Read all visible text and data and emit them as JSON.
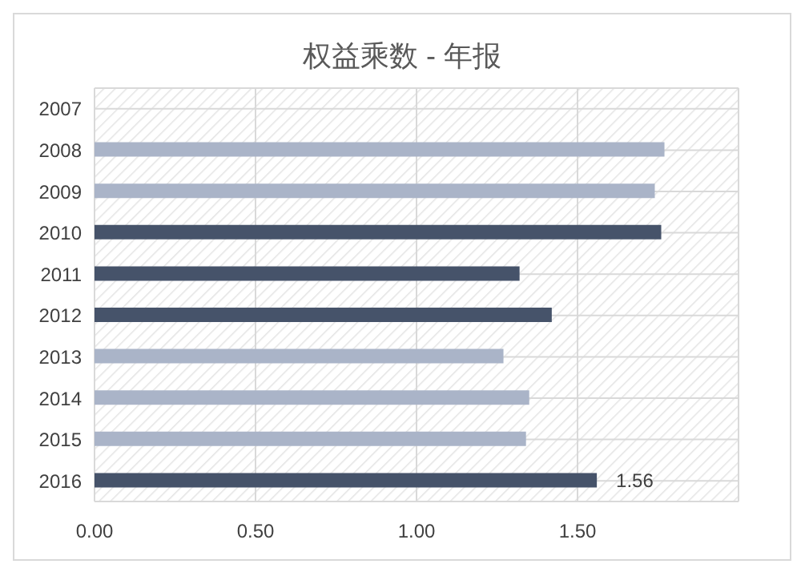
{
  "chart_data": {
    "type": "bar",
    "orientation": "horizontal",
    "title": "权益乘数 - 年报",
    "categories": [
      "2007",
      "2008",
      "2009",
      "2010",
      "2011",
      "2012",
      "2013",
      "2014",
      "2015",
      "2016"
    ],
    "values": [
      null,
      1.77,
      1.74,
      1.76,
      1.32,
      1.42,
      1.27,
      1.35,
      1.34,
      1.56
    ],
    "colors": [
      "#aab4c8",
      "#aab4c8",
      "#aab4c8",
      "#46536a",
      "#46536a",
      "#46536a",
      "#aab4c8",
      "#aab4c8",
      "#aab4c8",
      "#46536a"
    ],
    "value_labels": [
      null,
      null,
      null,
      null,
      null,
      null,
      null,
      null,
      null,
      "1.56"
    ],
    "xlim": [
      0,
      2
    ],
    "xticks": [
      {
        "value": 0,
        "label": "0.00"
      },
      {
        "value": 0.5,
        "label": "0.50"
      },
      {
        "value": 1,
        "label": "1.00"
      },
      {
        "value": 1.5,
        "label": "1.50"
      },
      {
        "value": 2,
        "label": null
      }
    ],
    "grid": true
  }
}
